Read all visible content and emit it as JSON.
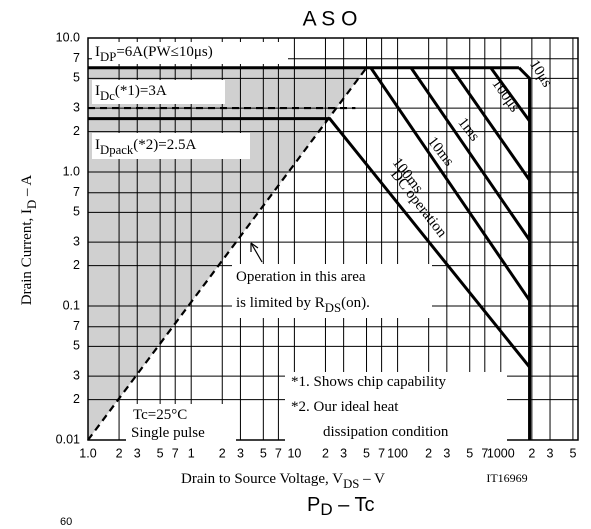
{
  "chart_data": {
    "type": "line",
    "title": "A S O",
    "x_label": [
      {
        "text": "Drain to Source Voltage, V"
      },
      {
        "text": "DS",
        "sub": true
      },
      {
        "text": " – V"
      }
    ],
    "y_label": [
      {
        "text": "Drain Current, I"
      },
      {
        "text": "D",
        "sub": true
      },
      {
        "text": " – A"
      }
    ],
    "code": "IT16969",
    "footer": [
      {
        "text": "P"
      },
      {
        "text": "D",
        "sub": true
      },
      {
        "text": " – Tc"
      }
    ],
    "footer_cut": "60",
    "log_x": true,
    "log_y": true,
    "grid": true,
    "xlim": [
      0.1,
      5600
    ],
    "ylim": [
      0.01,
      10
    ],
    "xticks": [
      {
        "value": 0.1,
        "label": "1.0"
      },
      {
        "value": 0.2,
        "label": "2"
      },
      {
        "value": 0.3,
        "label": "3"
      },
      {
        "value": 0.5,
        "label": "5"
      },
      {
        "value": 0.7,
        "label": "7"
      },
      1,
      {
        "value": 2,
        "label": "2"
      },
      {
        "value": 3,
        "label": "3"
      },
      {
        "value": 5,
        "label": "5"
      },
      {
        "value": 7,
        "label": "7"
      },
      10,
      {
        "value": 20,
        "label": "2"
      },
      {
        "value": 30,
        "label": "3"
      },
      {
        "value": 50,
        "label": "5"
      },
      {
        "value": 70,
        "label": "7"
      },
      100,
      {
        "value": 200,
        "label": "2"
      },
      {
        "value": 300,
        "label": "3"
      },
      {
        "value": 500,
        "label": "5"
      },
      {
        "value": 700,
        "label": "7"
      },
      1000,
      {
        "value": 2000,
        "label": "2"
      },
      {
        "value": 3000,
        "label": "3"
      },
      {
        "value": 5000,
        "label": "5"
      }
    ],
    "yticks": [
      0.01,
      {
        "value": 0.02,
        "label": "2"
      },
      {
        "value": 0.03,
        "label": "3"
      },
      {
        "value": 0.05,
        "label": "5"
      },
      {
        "value": 0.07,
        "label": "7"
      },
      0.1,
      {
        "value": 0.2,
        "label": "2"
      },
      {
        "value": 0.3,
        "label": "3"
      },
      {
        "value": 0.5,
        "label": "5"
      },
      {
        "value": 0.7,
        "label": "7"
      },
      {
        "value": 1,
        "label": "1.0"
      },
      2,
      3,
      5,
      7,
      {
        "value": 10,
        "label": "10.0"
      }
    ],
    "series": [
      {
        "name": "10μs",
        "x": [
          1500,
          1900,
          1900
        ],
        "values": [
          6,
          5,
          0.01
        ]
      },
      {
        "name": "100μs",
        "x": [
          800,
          1900
        ],
        "values": [
          6,
          2.4
        ]
      },
      {
        "name": "1ms",
        "x": [
          330,
          1900
        ],
        "values": [
          6,
          0.87
        ]
      },
      {
        "name": "10ms",
        "x": [
          135,
          1900
        ],
        "values": [
          6,
          0.31
        ]
      },
      {
        "name": "100ms",
        "x": [
          55,
          1900
        ],
        "values": [
          6,
          0.11
        ]
      },
      {
        "name": "DC operation",
        "x": [
          0.1,
          22,
          1900
        ],
        "values": [
          2.5,
          2.5,
          0.035
        ]
      },
      {
        "x": [
          0.1,
          1500
        ],
        "values": [
          6,
          6
        ]
      },
      {
        "x": [
          0.1,
          39
        ],
        "values": [
          3,
          3
        ],
        "style": "dashed"
      },
      {
        "x": [
          0.1,
          50
        ],
        "values": [
          0.01,
          6
        ],
        "style": "dashed",
        "shade": "#d0d0d0"
      }
    ],
    "annotations": [
      {
        "segments": [
          {
            "text": "I"
          },
          {
            "text": "DP",
            "sub": true
          },
          {
            "text": "=6A(PW≤10μs)"
          }
        ]
      },
      {
        "segments": [
          {
            "text": "I"
          },
          {
            "text": "Dc",
            "sub": true
          },
          {
            "text": "(*1)=3A"
          }
        ]
      },
      {
        "segments": [
          {
            "text": "I"
          },
          {
            "text": "Dpack",
            "sub": true
          },
          {
            "text": "(*2)=2.5A"
          }
        ]
      },
      {
        "segments": [
          {
            "text": "Operation in this area"
          }
        ]
      },
      {
        "segments": [
          {
            "text": "is limited by R"
          },
          {
            "text": "DS",
            "sub": true
          },
          {
            "text": "(on)."
          }
        ]
      },
      {
        "segments": [
          {
            "text": "*1. Shows chip capability"
          }
        ]
      },
      {
        "segments": [
          {
            "text": "*2. Our ideal heat"
          }
        ]
      },
      {
        "segments": [
          {
            "text": "dissipation condition"
          }
        ]
      },
      {
        "segments": [
          {
            "text": "Tc=25°C"
          }
        ]
      },
      {
        "segments": [
          {
            "text": "Single pulse"
          }
        ]
      }
    ]
  }
}
